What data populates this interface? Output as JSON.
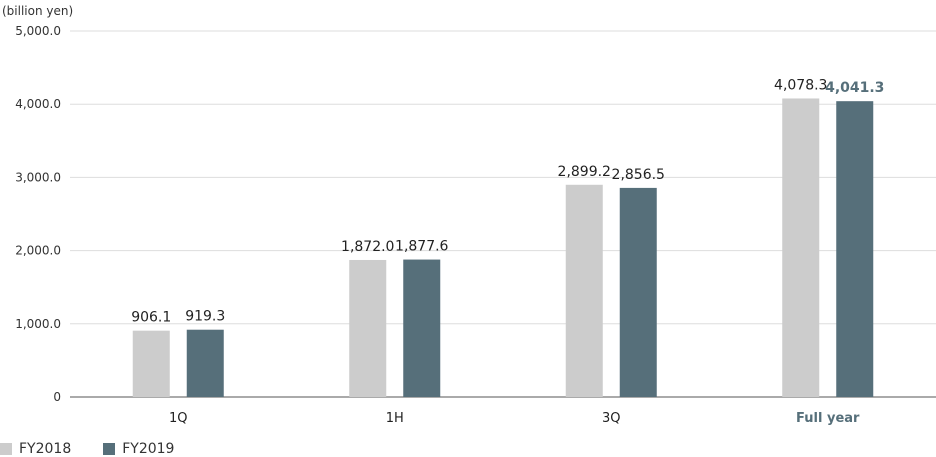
{
  "chart_data": {
    "type": "bar",
    "unit_label": "(billion yen)",
    "categories": [
      "1Q",
      "1H",
      "3Q",
      "Full year"
    ],
    "highlight_category": "Full year",
    "ylim": [
      0,
      5000
    ],
    "yticks": [
      "0",
      "1,000.0",
      "2,000.0",
      "3,000.0",
      "4,000.0",
      "5,000.0"
    ],
    "grid": true,
    "legend_position": "bottom-left",
    "series": [
      {
        "name": "FY2018",
        "color": "#cccccc",
        "values": [
          906.1,
          1872.0,
          2899.2,
          4078.3
        ],
        "labels": [
          "906.1",
          "1,872.0",
          "2,899.2",
          "4,078.3"
        ]
      },
      {
        "name": "FY2019",
        "color": "#566f7a",
        "values": [
          919.3,
          1877.6,
          2856.5,
          4041.3
        ],
        "labels": [
          "919.3",
          "1,877.6",
          "2,856.5",
          "4,041.3"
        ]
      }
    ]
  }
}
